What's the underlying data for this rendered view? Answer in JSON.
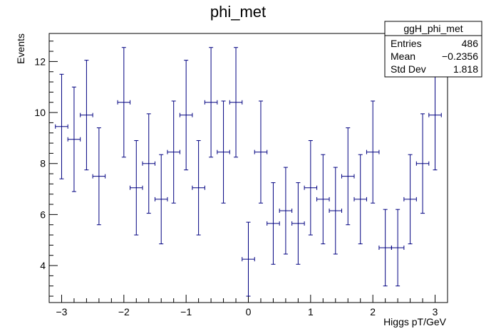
{
  "chart_data": {
    "type": "scatter",
    "title": "phi_met",
    "xlabel": "Higgs pT/GeV",
    "ylabel": "Events",
    "xlim": [
      -3.2,
      3.2
    ],
    "ylim": [
      2.55,
      13.1
    ],
    "xticks": [
      -3,
      -2,
      -1,
      0,
      1,
      2,
      3
    ],
    "yticks": [
      4,
      6,
      8,
      10,
      12
    ],
    "grid": false,
    "error_bars": true,
    "bin_half_width": 0.1,
    "marker_color": "#000080",
    "series": [
      {
        "x": [
          -3.0,
          -2.8,
          -2.6,
          -2.4,
          -2.0,
          -1.8,
          -1.6,
          -1.4,
          -1.2,
          -1.0,
          -0.8,
          -0.6,
          -0.4,
          -0.2,
          0.0,
          0.2,
          0.4,
          0.6,
          0.8,
          1.0,
          1.2,
          1.4,
          1.6,
          1.8,
          2.0,
          2.2,
          2.4,
          2.6,
          2.8,
          3.0
        ],
        "y": [
          9.45,
          8.95,
          9.9,
          7.5,
          10.4,
          7.05,
          8.0,
          6.6,
          8.45,
          9.9,
          7.05,
          10.4,
          8.45,
          10.4,
          4.25,
          8.45,
          5.65,
          6.15,
          5.65,
          7.05,
          6.6,
          6.15,
          7.5,
          6.6,
          8.45,
          4.7,
          4.7,
          6.6,
          8.0,
          9.9
        ],
        "err": [
          2.05,
          2.05,
          2.15,
          1.9,
          2.15,
          1.85,
          1.95,
          1.75,
          2.0,
          2.15,
          1.85,
          2.15,
          2.0,
          2.15,
          1.45,
          2.0,
          1.6,
          1.7,
          1.6,
          1.85,
          1.75,
          1.7,
          1.9,
          1.75,
          2.0,
          1.5,
          1.5,
          1.75,
          1.95,
          2.15
        ]
      }
    ]
  },
  "stats_box": {
    "title": "ggH_phi_met",
    "rows": [
      {
        "label": "Entries",
        "value": "486"
      },
      {
        "label": "Mean",
        "value": "−0.2356"
      },
      {
        "label": "Std Dev",
        "value": "1.818"
      }
    ]
  }
}
